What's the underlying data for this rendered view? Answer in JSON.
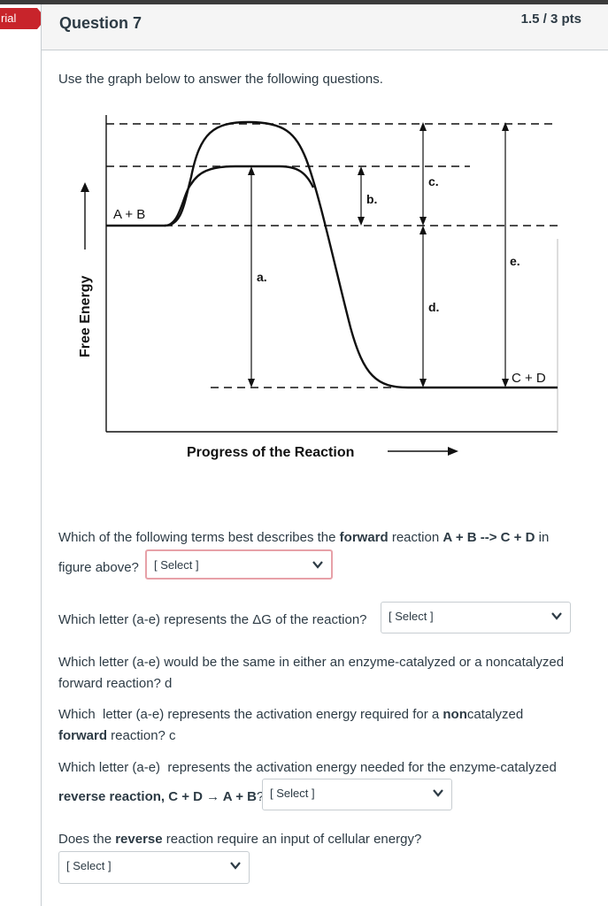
{
  "sidebar_tab": {
    "label": "rial"
  },
  "header": {
    "title": "Question 7",
    "points": "1.5 / 3 pts"
  },
  "intro": "Use the graph below to answer the following questions.",
  "graph": {
    "y_label": "Free Energy",
    "x_label": "Progress of the Reaction",
    "reactants": "A + B",
    "products": "C + D",
    "letters": {
      "a": "a.",
      "b": "b.",
      "c": "c.",
      "d": "d.",
      "e": "e."
    }
  },
  "questions": {
    "q1": {
      "pre": "Which of the following terms best describes the ",
      "bold": "forward",
      "mid": " reaction ",
      "bold2": "A + B --> C + D",
      "post": " in",
      "line2": "figure above?",
      "select": "[ Select ]"
    },
    "q2": {
      "text": "Which letter (a-e) represents the ΔG of the reaction?",
      "select": "[ Select ]"
    },
    "q3": {
      "line1": "Which letter (a-e) would be the same in either an enzyme-catalyzed or a noncatalyzed",
      "line2": "forward reaction? d"
    },
    "q4": {
      "line1": "Which  letter (a-e) represents the activation energy required for a ",
      "bold": "non",
      "line1b": "catalyzed",
      "bold2": "forward",
      "line2": " reaction? c"
    },
    "q5": {
      "line1": "Which letter (a-e)  represents the activation energy needed for the enzyme-catalyzed",
      "bold": "reverse reaction, C + D → A + B",
      "q": "?",
      "select": "[ Select ]"
    },
    "q6": {
      "pre": "Does the ",
      "bold": "reverse",
      "post": " reaction require an input of cellular energy?",
      "select": "[ Select ]"
    }
  }
}
